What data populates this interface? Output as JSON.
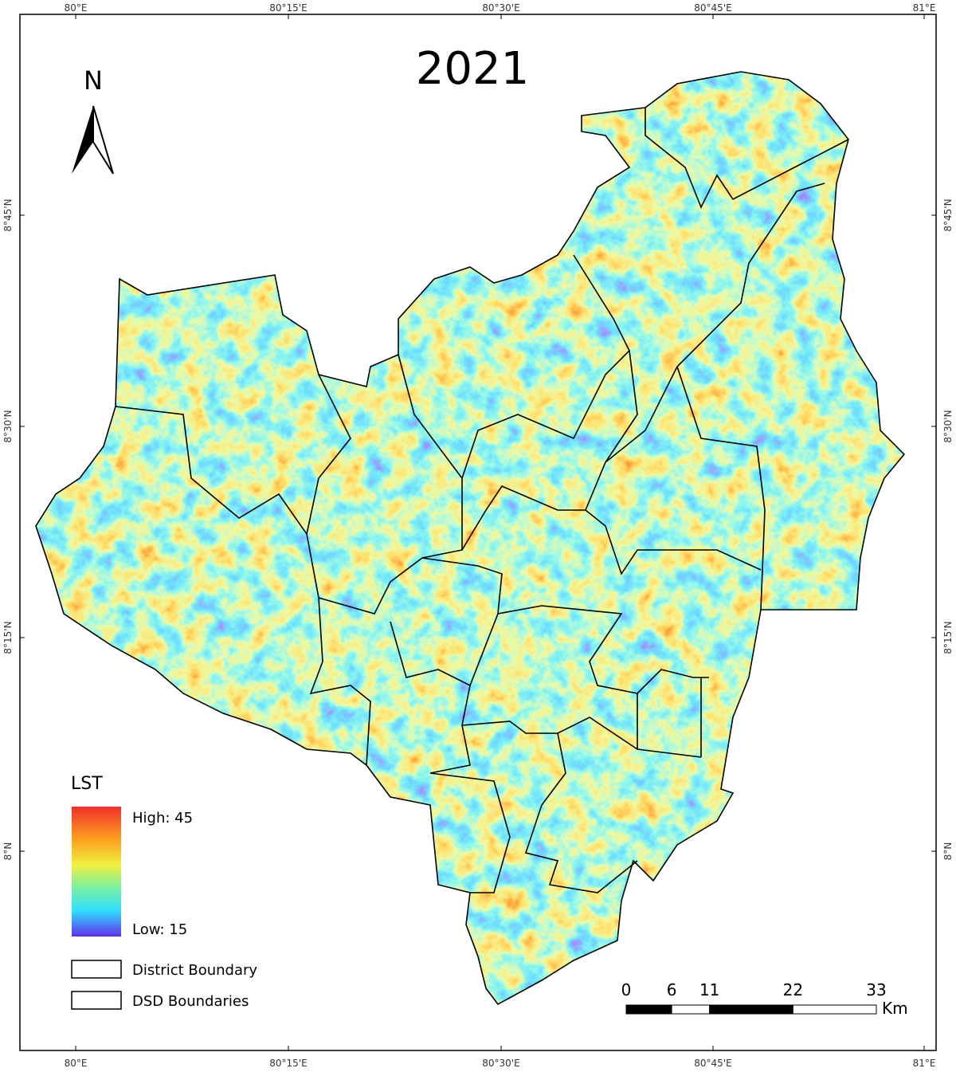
{
  "title": "2021",
  "north": "N",
  "graticule": {
    "x_labels": [
      "80°E",
      "80°15'E",
      "80°30'E",
      "80°45'E",
      "81°E"
    ],
    "y_labels": [
      "8°45'N",
      "8°30'N",
      "8°15'N",
      "8°N"
    ]
  },
  "legend": {
    "title": "LST",
    "high": "High: 45",
    "low": "Low: 15",
    "items": [
      "District Boundary",
      "DSD Boundaries"
    ]
  },
  "scale_bar": {
    "ticks": [
      0,
      6,
      11,
      22,
      33
    ],
    "unit": "Km"
  }
}
